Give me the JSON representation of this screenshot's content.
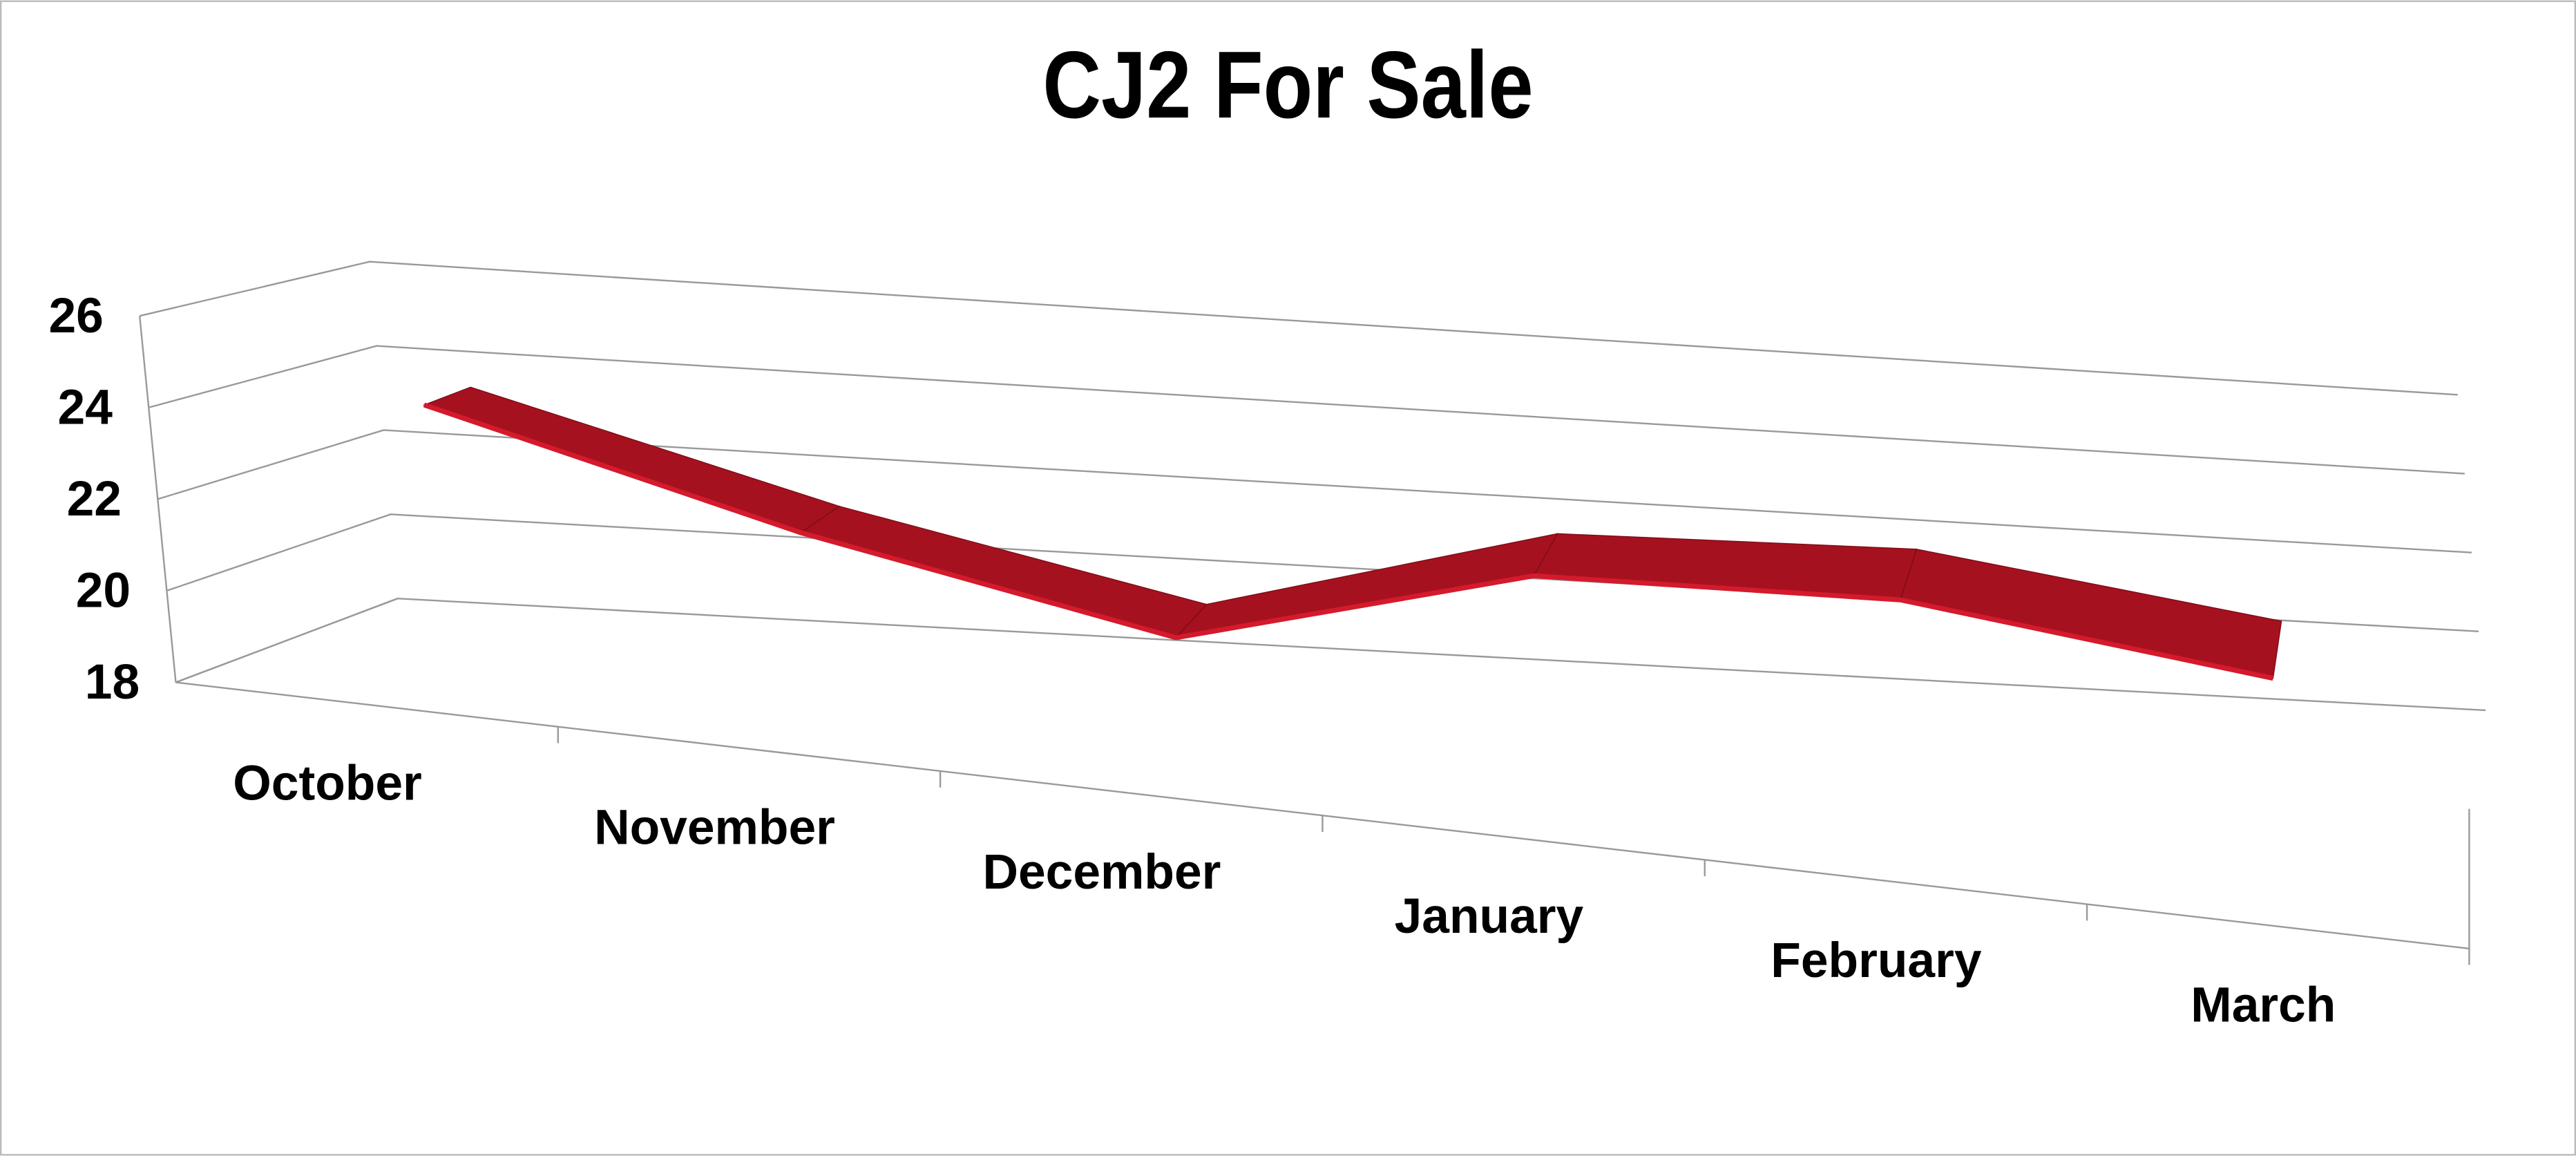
{
  "chart_data": {
    "type": "line3d",
    "title": "CJ2 For Sale",
    "categories": [
      "October",
      "November",
      "December",
      "January",
      "February",
      "March"
    ],
    "series": [
      {
        "name": "CJ2 For Sale",
        "color": "#a6111f",
        "values": [
          24,
          22,
          20.4,
          23,
          23.5,
          22.5
        ]
      }
    ],
    "ylim": [
      18,
      26
    ],
    "yticks": [
      18,
      20,
      22,
      24,
      26
    ],
    "grid": true
  }
}
